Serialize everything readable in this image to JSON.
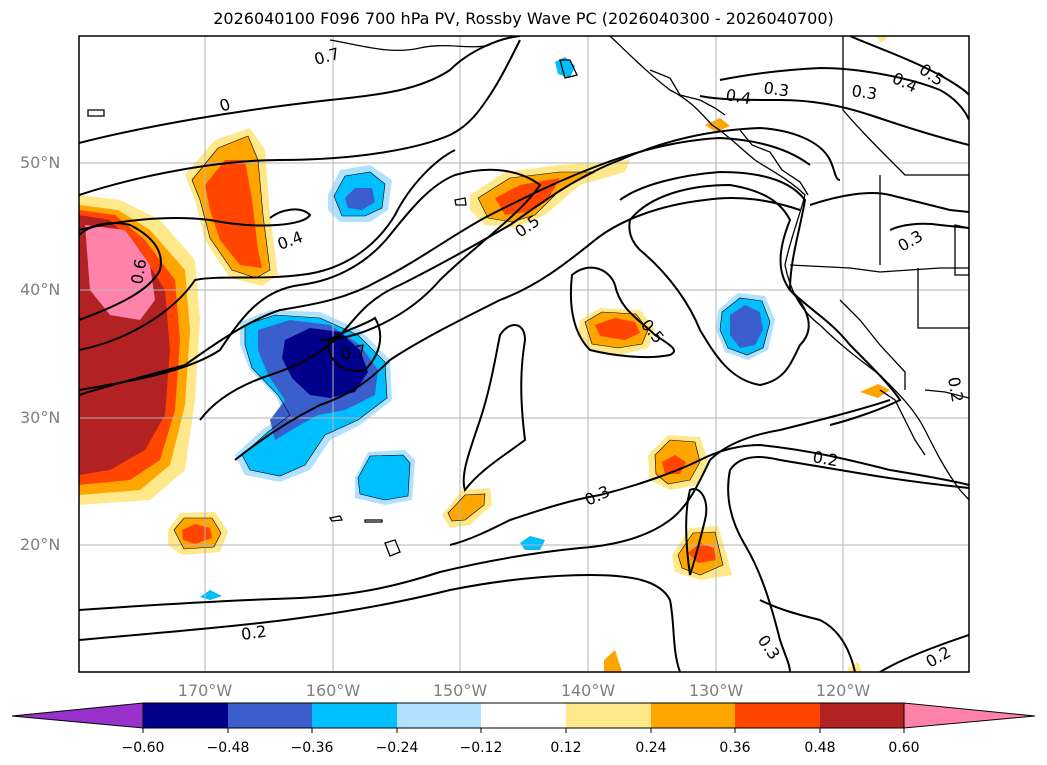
{
  "title": "2026040100 F096 700 hPa PV, Rossby Wave PC (2026040300 - 2026040700)",
  "latitude_labels": [
    "50°N",
    "40°N",
    "30°N",
    "20°N"
  ],
  "longitude_labels": [
    "170°W",
    "160°W",
    "150°W",
    "140°W",
    "130°W",
    "120°W"
  ],
  "colorbar": {
    "tick_labels": [
      "−0.60",
      "−0.48",
      "−0.36",
      "−0.24",
      "−0.12",
      "0.12",
      "0.24",
      "0.36",
      "0.48",
      "0.60"
    ],
    "colors": [
      "#9932cc",
      "#00008b",
      "#3a5fcd",
      "#00bfff",
      "#b0e2ff",
      "#ffffff",
      "#ffe88a",
      "#ffa500",
      "#ff4500",
      "#b22222",
      "#ff82ab"
    ]
  },
  "contour_labels": [
    "0.7",
    "0.4",
    "0.3",
    "0.3",
    "0.4",
    "0.5",
    "0.5",
    "0.4",
    "0.6",
    "0.7",
    "0.3",
    "0.5",
    "0.2",
    "0.3",
    "0.2",
    "0.3",
    "0.2",
    "0.2"
  ]
}
